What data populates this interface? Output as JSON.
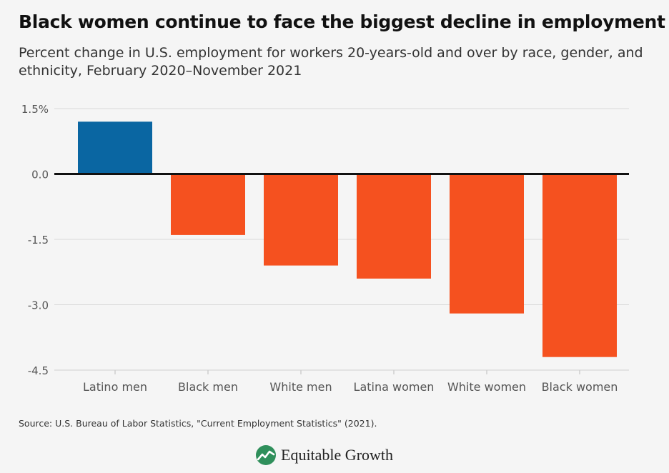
{
  "chart_data": {
    "type": "bar",
    "title": "Black women continue to face the biggest decline in employment",
    "subtitle": "Percent change in U.S. employment for workers 20-years-old and over by race, gender, and ethnicity, February 2020–November 2021",
    "categories": [
      "Latino men",
      "Black men",
      "White men",
      "Latina women",
      "White women",
      "Black women"
    ],
    "values": [
      1.2,
      -1.4,
      -2.1,
      -2.4,
      -3.2,
      -4.2
    ],
    "ylim": [
      -4.5,
      1.5
    ],
    "yticks": [
      1.5,
      0.0,
      -1.5,
      -3.0,
      -4.5
    ],
    "ytick_labels": [
      "1.5%",
      "0.0",
      "-1.5",
      "-3.0",
      "-4.5"
    ],
    "xlabel": "",
    "ylabel": "",
    "grid": true,
    "colors": {
      "positive": "#0a66a2",
      "negative": "#f5511f"
    }
  },
  "source": "Source: U.S. Bureau of Labor Statistics, \"Current Employment Statistics\" (2021).",
  "brand": {
    "name": "Equitable Growth",
    "icon": "equitable-growth-logo-icon"
  }
}
